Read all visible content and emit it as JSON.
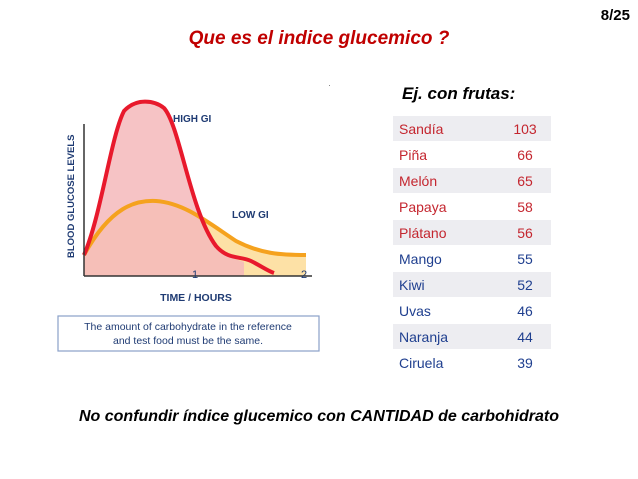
{
  "slide": {
    "title": "Que es el indice glucemico ?",
    "page_number": "8/25",
    "fruit_caption": "Ej. con frutas:",
    "bottom_note": "No confundir índice glucemico con CANTIDAD de carbohidrato"
  },
  "chart": {
    "ylabel": "BLOOD GLUCOSE LEVELS",
    "xlabel": "TIME / HOURS",
    "ticks": [
      "1",
      "2"
    ],
    "high_label": "HIGH GI",
    "low_label": "LOW GI",
    "note_line1": "The amount of carbohydrate in the reference",
    "note_line2": "and test food must be the same.",
    "colors": {
      "high_line": "#e8192c",
      "high_fill": "#f4b8bb",
      "low_line": "#f5a21e",
      "low_fill": "#fde1a6",
      "label": "#1f3b73"
    }
  },
  "fruits": [
    {
      "name": "Sandía",
      "value": "103"
    },
    {
      "name": "Piña",
      "value": "66"
    },
    {
      "name": "Melón",
      "value": "65"
    },
    {
      "name": "Papaya",
      "value": "58"
    },
    {
      "name": "Plátano",
      "value": "56"
    },
    {
      "name": "Mango",
      "value": "55"
    },
    {
      "name": "Kiwi",
      "value": "52"
    },
    {
      "name": "Uvas",
      "value": "46"
    },
    {
      "name": "Naranja",
      "value": "44"
    },
    {
      "name": "Ciruela",
      "value": "39"
    }
  ],
  "table_colors": {
    "high_text": "#c4262f",
    "low_text": "#1f3f8f"
  }
}
